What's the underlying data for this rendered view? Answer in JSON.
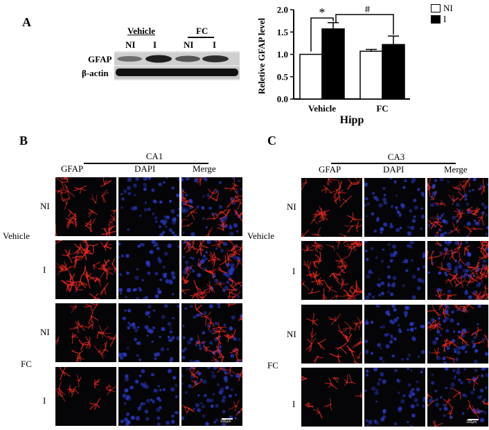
{
  "panels": {
    "a": "A",
    "b": "B",
    "c": "C"
  },
  "western_blot": {
    "groups": [
      "Vehicle",
      "FC"
    ],
    "lanes": [
      "NI",
      "I",
      "NI",
      "I"
    ],
    "rows": [
      "GFAP",
      "β-actin"
    ],
    "colors": {
      "band_dark": "#111111",
      "band_mid": "#3a3a3a",
      "background": "#d8d8d8"
    }
  },
  "chart_data": {
    "type": "bar",
    "categories": [
      "Vehicle",
      "FC"
    ],
    "series": [
      {
        "name": "NI",
        "values": [
          1.0,
          1.07
        ],
        "errors": [
          0.0,
          0.04
        ],
        "fill": "#ffffff"
      },
      {
        "name": "I",
        "values": [
          1.57,
          1.22
        ],
        "errors": [
          0.14,
          0.19
        ],
        "fill": "#000000"
      }
    ],
    "ylabel": "Reletive GFAP level",
    "xlabel": "Hipp",
    "ylim": [
      0,
      2.0
    ],
    "yticks": [
      "0.0",
      "0.5",
      "1.0",
      "1.5",
      "2.0"
    ],
    "legend_placement": "top-right",
    "annotations": [
      "*",
      "#"
    ]
  },
  "panel_b": {
    "region": "CA1",
    "columns": [
      "GFAP",
      "DAPI",
      "Merge"
    ],
    "row_labels": [
      "NI",
      "I",
      "NI",
      "I"
    ],
    "groups": [
      "Vehicle",
      "FC"
    ],
    "scale_bar": "100μm"
  },
  "panel_c": {
    "region": "CA3",
    "columns": [
      "GFAP",
      "DAPI",
      "Merge"
    ],
    "row_labels": [
      "NI",
      "I",
      "NI",
      "I"
    ],
    "groups": [
      "Vehicle",
      "FC"
    ],
    "scale_bar": "100μm"
  },
  "colors": {
    "gfap": "#e0281f",
    "dapi": "#2f3fd8",
    "tile_bg": "#050508"
  }
}
